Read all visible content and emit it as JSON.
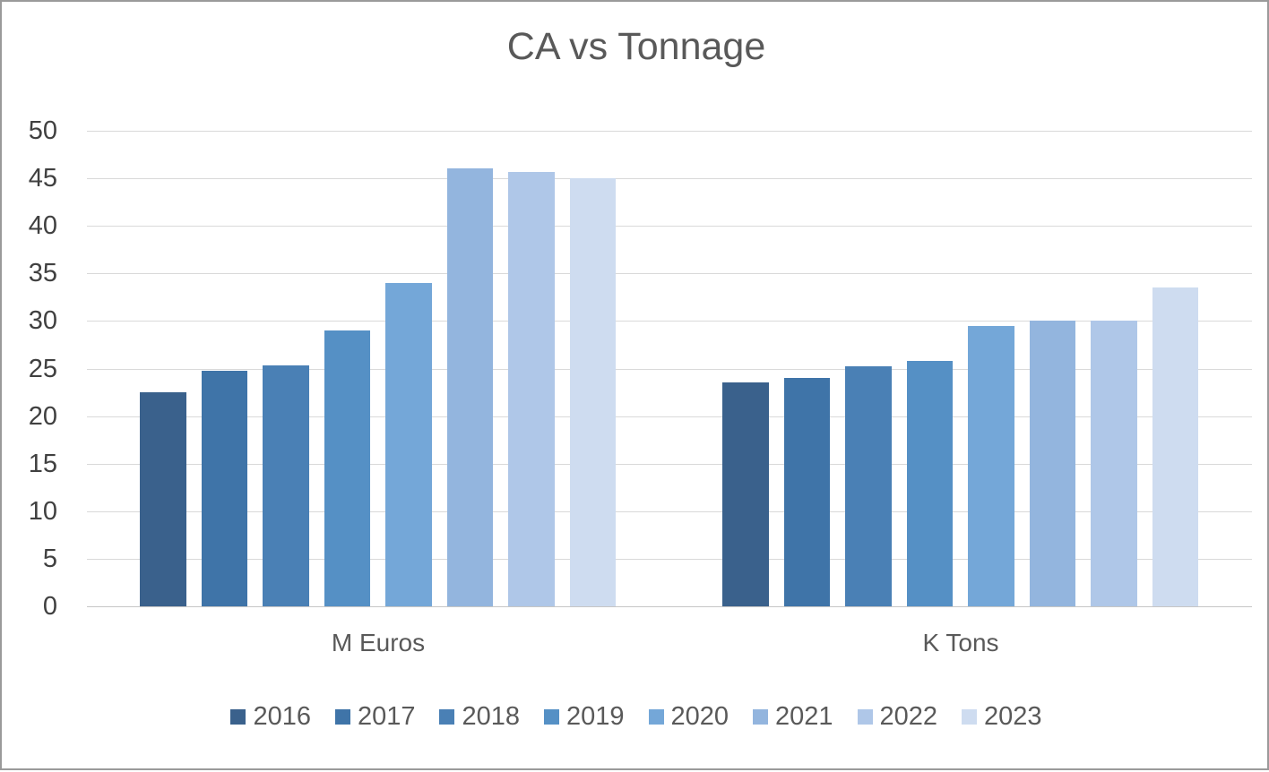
{
  "chart_data": {
    "type": "bar",
    "title": "CA vs Tonnage",
    "categories": [
      "M Euros",
      "K Tons"
    ],
    "y_axis": {
      "min": 0,
      "max": 50,
      "step": 5,
      "tick_labels": [
        "0",
        "5",
        "10",
        "15",
        "20",
        "25",
        "30",
        "35",
        "40",
        "45",
        "50"
      ]
    },
    "grid": true,
    "legend_position": "bottom",
    "series": [
      {
        "name": "2016",
        "color": "#3a618c",
        "values": [
          22.5,
          23.5
        ]
      },
      {
        "name": "2017",
        "color": "#3f74a8",
        "values": [
          24.8,
          24.0
        ]
      },
      {
        "name": "2018",
        "color": "#4a80b5",
        "values": [
          25.3,
          25.2
        ]
      },
      {
        "name": "2019",
        "color": "#5590c5",
        "values": [
          29.0,
          25.8
        ]
      },
      {
        "name": "2020",
        "color": "#74a7d8",
        "values": [
          34.0,
          29.5
        ]
      },
      {
        "name": "2021",
        "color": "#93b5de",
        "values": [
          46.0,
          30.0
        ]
      },
      {
        "name": "2022",
        "color": "#afc7e8",
        "values": [
          45.7,
          30.0
        ]
      },
      {
        "name": "2023",
        "color": "#cedcf0",
        "values": [
          45.0,
          33.5
        ]
      }
    ],
    "colors": {
      "title_text": "#595959",
      "axis_text": "#404040",
      "gridline": "#d9d9d9"
    }
  }
}
